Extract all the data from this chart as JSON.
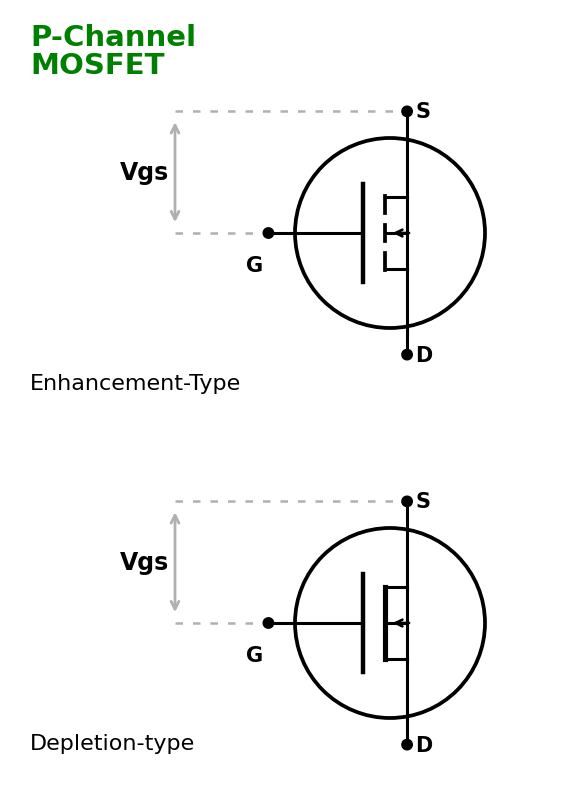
{
  "title_line1": "P-Channel",
  "title_line2": "MOSFET",
  "title_color": "#008000",
  "title_fontsize": 21,
  "title_fontweight": "bold",
  "bg_color": "#ffffff",
  "label_color": "#000000",
  "arrow_color": "#b0b0b0",
  "dot_line_color": "#b0b0b0",
  "mosfet_color": "#000000",
  "enhancement_label": "Enhancement-Type",
  "depletion_label": "Depletion-type",
  "vgs_label": "Vgs",
  "vgs_fontsize": 17,
  "vgs_fontweight": "bold",
  "type_fontsize": 16,
  "S_label": "S",
  "G_label": "G",
  "D_label": "D",
  "terminal_fontsize": 15,
  "terminal_fontweight": "bold"
}
